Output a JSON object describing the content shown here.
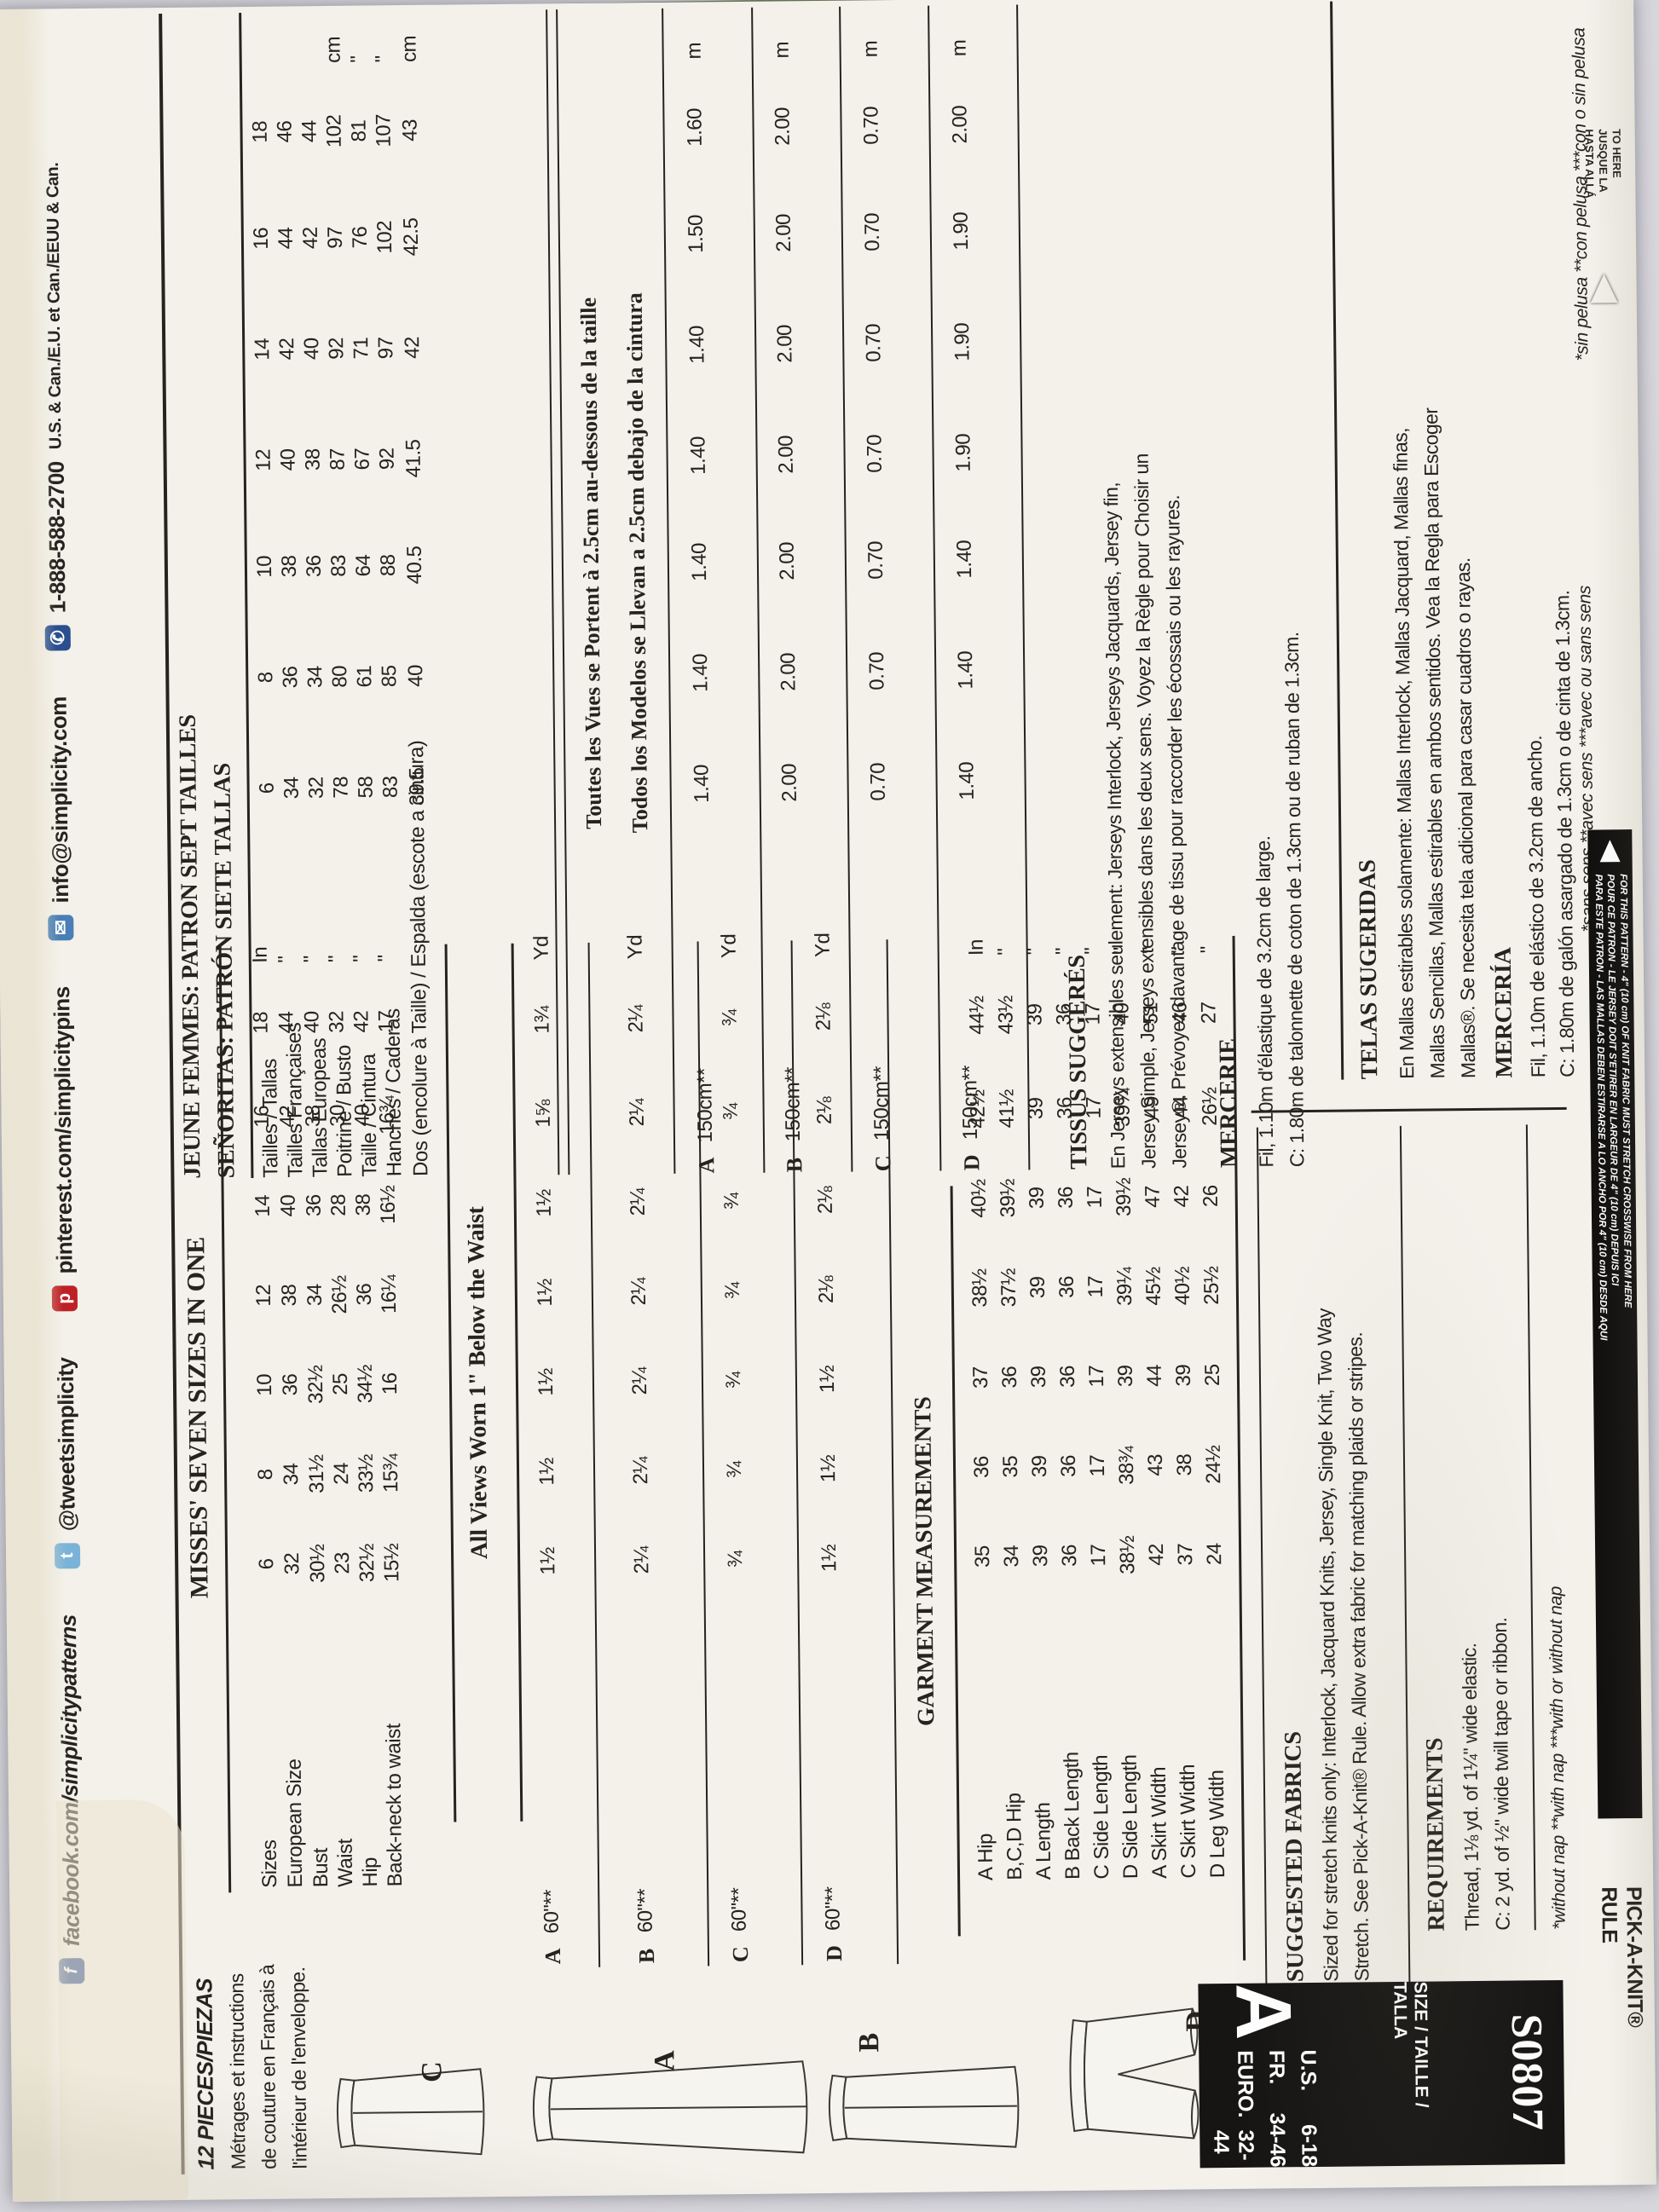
{
  "colors": {
    "background": "#d7d6db",
    "envelope": "#f3f1ea",
    "ink": "#26231f",
    "green": "#76865c",
    "block": "#161514"
  },
  "social": {
    "facebook": "facebook.com/simplicitypatterns",
    "twitter": "@tweetsimplicity",
    "pinterest": "pinterest.com/simplicitypins",
    "email": "info@simplicity.com",
    "phone": "1-888-588-2700",
    "regions": "U.S. & Can./E.U. et Can./EEUU & Can."
  },
  "pieces_note": {
    "line1": "12 PIECES/PIEZAS",
    "line2": "Métrages et instructions",
    "line3": "de couture en Français à",
    "line4": "l'intérieur de l'enveloppe."
  },
  "english": {
    "heading": "MISSES' SEVEN SIZES IN ONE",
    "size_table": {
      "rows": [
        {
          "label": "Sizes",
          "values": [
            "6",
            "8",
            "10",
            "12",
            "14",
            "16",
            "18"
          ],
          "unit": "In"
        },
        {
          "label": "European Size",
          "values": [
            "32",
            "34",
            "36",
            "38",
            "40",
            "42",
            "44"
          ],
          "unit": "\""
        },
        {
          "label": "Bust",
          "values": [
            "30½",
            "31½",
            "32½",
            "34",
            "36",
            "38",
            "40"
          ],
          "unit": "\""
        },
        {
          "label": "Waist",
          "values": [
            "23",
            "24",
            "25",
            "26½",
            "28",
            "30",
            "32"
          ],
          "unit": "\""
        },
        {
          "label": "Hip",
          "values": [
            "32½",
            "33½",
            "34½",
            "36",
            "38",
            "40",
            "42"
          ],
          "unit": "\""
        },
        {
          "label": "Back-neck to waist",
          "values": [
            "15½",
            "15¾",
            "16",
            "16¼",
            "16½",
            "16¾",
            "17"
          ],
          "unit": "\""
        }
      ]
    },
    "all_views": "All Views Worn 1\" Below the Waist",
    "yardage": [
      {
        "view": "A",
        "width": "60\"**",
        "values": [
          "1½",
          "1½",
          "1½",
          "1½",
          "1½",
          "1⅝",
          "1¾"
        ],
        "unit": "Yd"
      },
      {
        "view": "B",
        "width": "60\"**",
        "values": [
          "2¼",
          "2¼",
          "2¼",
          "2¼",
          "2¼",
          "2¼",
          "2¼"
        ],
        "unit": "Yd"
      },
      {
        "view": "C",
        "width": "60\"**",
        "values": [
          "¾",
          "¾",
          "¾",
          "¾",
          "¾",
          "¾",
          "¾"
        ],
        "unit": "Yd"
      },
      {
        "view": "D",
        "width": "60\"**",
        "values": [
          "1½",
          "1½",
          "1½",
          "2⅛",
          "2⅛",
          "2⅛",
          "2⅛"
        ],
        "unit": "Yd"
      }
    ],
    "garment_heading": "GARMENT MEASUREMENTS",
    "garment_rows": [
      {
        "label": "A Hip",
        "values": [
          "35",
          "36",
          "37",
          "38½",
          "40½",
          "42½",
          "44½"
        ],
        "unit": "In"
      },
      {
        "label": "B,C,D Hip",
        "values": [
          "34",
          "35",
          "36",
          "37½",
          "39½",
          "41½",
          "43½"
        ],
        "unit": "\""
      },
      {
        "label": "A Length",
        "values": [
          "39",
          "39",
          "39",
          "39",
          "39",
          "39",
          "39"
        ],
        "unit": "\""
      },
      {
        "label": "B Back Length",
        "values": [
          "36",
          "36",
          "36",
          "36",
          "36",
          "36",
          "36"
        ],
        "unit": "\""
      },
      {
        "label": "C Side Length",
        "values": [
          "17",
          "17",
          "17",
          "17",
          "17",
          "17",
          "17"
        ],
        "unit": "\""
      },
      {
        "label": "D Side Length",
        "values": [
          "38½",
          "38¾",
          "39",
          "39¼",
          "39½",
          "39¾",
          "40"
        ],
        "unit": "\""
      },
      {
        "label": "A Skirt Width",
        "values": [
          "42",
          "43",
          "44",
          "45½",
          "47",
          "49",
          "51"
        ],
        "unit": "\""
      },
      {
        "label": "C Skirt Width",
        "values": [
          "37",
          "38",
          "39",
          "40½",
          "42",
          "44",
          "46"
        ],
        "unit": "\""
      },
      {
        "label": "D Leg Width",
        "values": [
          "24",
          "24½",
          "25",
          "25½",
          "26",
          "26½",
          "27"
        ],
        "unit": "\""
      }
    ],
    "suggested_fabrics": {
      "heading": "SUGGESTED FABRICS",
      "line1": "Sized for stretch knits only: Interlock, Jacquard Knits, Jersey, Single Knit, Two Way",
      "line2": "Stretch. See Pick-A-Knit® Rule. Allow extra fabric for matching plaids or stripes."
    },
    "requirements": {
      "heading": "REQUIREMENTS",
      "line1": "Thread, 1⅛ yd. of 1¼\" wide elastic.",
      "line2": "C: 2 yd. of ½\" wide twill tape or ribbon."
    },
    "footnote": "*without nap   **with nap   ***with or without nap"
  },
  "french": {
    "heading1": "JEUNE FEMMES: PATRON SEPT TAILLES",
    "heading2": "SEÑORITAS: PATRÓN SIETE TALLAS",
    "size_table": {
      "rows": [
        {
          "label": "Tailles / Tallas",
          "values": [
            "6",
            "8",
            "10",
            "12",
            "14",
            "16",
            "18"
          ],
          "unit": ""
        },
        {
          "label": "Tailles Françaises",
          "values": [
            "34",
            "36",
            "38",
            "40",
            "42",
            "44",
            "46"
          ],
          "unit": ""
        },
        {
          "label": "Tallas Europeas",
          "values": [
            "32",
            "34",
            "36",
            "38",
            "40",
            "42",
            "44"
          ],
          "unit": ""
        },
        {
          "label": "Poitrine / Busto",
          "values": [
            "78",
            "80",
            "83",
            "87",
            "92",
            "97",
            "102"
          ],
          "unit": "cm"
        },
        {
          "label": "Taille / Cintura",
          "values": [
            "58",
            "61",
            "64",
            "67",
            "71",
            "76",
            "81"
          ],
          "unit": "\""
        },
        {
          "label": "Hanches / Caderas",
          "values": [
            "83",
            "85",
            "88",
            "92",
            "97",
            "102",
            "107"
          ],
          "unit": "\""
        },
        {
          "label": "Dos (encolure à Taille) / Espalda (escote a cintura)",
          "values": [
            "39.5",
            "40",
            "40.5",
            "41.5",
            "42",
            "42.5",
            "43"
          ],
          "unit": "cm"
        }
      ]
    },
    "note1": "Toutes les Vues se Portent à 2.5cm au-dessous de la taille",
    "note2": "Todos los Modelos se Llevan a 2.5cm debajo de la cintura",
    "metrage": [
      {
        "view": "A",
        "width": "150cm**",
        "values": [
          "1.40",
          "1.40",
          "1.40",
          "1.40",
          "1.40",
          "1.50",
          "1.60"
        ],
        "unit": "m"
      },
      {
        "view": "B",
        "width": "150cm**",
        "values": [
          "2.00",
          "2.00",
          "2.00",
          "2.00",
          "2.00",
          "2.00",
          "2.00"
        ],
        "unit": "m"
      },
      {
        "view": "C",
        "width": "150cm**",
        "values": [
          "0.70",
          "0.70",
          "0.70",
          "0.70",
          "0.70",
          "0.70",
          "0.70"
        ],
        "unit": "m"
      },
      {
        "view": "D",
        "width": "150cm**",
        "values": [
          "1.40",
          "1.40",
          "1.40",
          "1.90",
          "1.90",
          "1.90",
          "2.00"
        ],
        "unit": "m"
      }
    ],
    "tissus": {
      "heading": "TISSUS SUGGÉRÉS",
      "line1": "En Jerseys extensibles seulement: Jerseys Interlock, Jerseys Jacquards, Jersey fin,",
      "line2": "Jersey Simple, Jerseys extensibles dans les deux sens. Voyez la Règle pour Choisir un",
      "line3": "Jersey®. Prévoyez davantage de tissu pour raccorder les écossais ou les rayures."
    },
    "mercerie": {
      "heading": "MERCERIE",
      "line1": "Fil, 1.10m d'élastique de 3.2cm de large.",
      "line2": "C: 1.80m de talonnette de coton de 1.3cm ou de ruban de 1.3cm."
    },
    "telas": {
      "heading": "TELAS SUGERIDAS",
      "line1": "En Mallas estirables solamente: Mallas Interlock, Mallas Jacquard, Mallas finas,",
      "line2": "Mallas Sencillas, Mallas estirables en ambos sentidos. Vea la Regla para Escoger",
      "line3": "Mallas®. Se necesita tela adicional para casar cuadros o rayas."
    },
    "merceria": {
      "heading": "MERCERÍA",
      "line1": "Fil, 1.10m de elástico de 3.2cm de ancho.",
      "line2": "C: 1.80m de galón asargado de 1.3cm o de cinta de 1.3cm."
    },
    "footnote_fr": "*sans sens   **avec sens   ***avec ou sans sens",
    "footnote_es": "*sin pelusa   **con pelusa   ***con o sin pelusa"
  },
  "views": {
    "a": "A",
    "b": "B",
    "c": "C",
    "d": "D"
  },
  "number_block": {
    "number": "S0807",
    "size_label": "SIZE / TAILLE / TALLA",
    "rows": [
      [
        "U.S.",
        "6-18"
      ],
      [
        "FR.",
        "34-46"
      ],
      [
        "EURO.",
        "32-44"
      ]
    ],
    "letter": "A"
  },
  "gauge": {
    "pick_line1": "PICK-A-KNIT®",
    "pick_line2": "RULE",
    "bar_line1": "FOR THIS PATTERN - 4\" (10 cm) OF KNIT FABRIC MUST STRETCH CROSSWISE FROM HERE",
    "bar_line2": "POUR CE PATRON - LE JERSEY DOIT S'ETIRER EN LARGEUR DE 4\" (10 cm) DEPUIS ICI",
    "bar_line3": "PARA ESTE PATRON - LAS MALLAS DEBEN ESTIRARSE A LO ANCHO POR 4\" (10 cm) DESDE AQUI",
    "to1": "TO HERE",
    "to2": "JUSQUE LA",
    "to3": "HASTA ALLÁ"
  }
}
